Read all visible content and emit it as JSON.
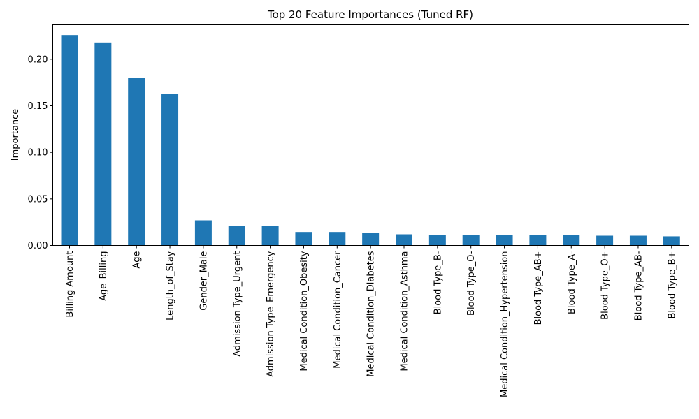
{
  "chart_data": {
    "type": "bar",
    "title": "Top 20 Feature Importances (Tuned RF)",
    "xlabel": "",
    "ylabel": "Importance",
    "ylim": [
      0,
      0.237
    ],
    "yticks": [
      "0.00",
      "0.05",
      "0.10",
      "0.15",
      "0.20"
    ],
    "ytick_values": [
      0,
      0.05,
      0.1,
      0.15,
      0.2
    ],
    "grid": false,
    "bar_color": "#1f77b4",
    "categories": [
      "Billing Amount",
      "Age_Billing",
      "Age",
      "Length_of_Stay",
      "Gender_Male",
      "Admission Type_Urgent",
      "Admission Type_Emergency",
      "Medical Condition_Obesity",
      "Medical Condition_Cancer",
      "Medical Condition_Diabetes",
      "Medical Condition_Asthma",
      "Blood Type_B-",
      "Blood Type_O-",
      "Medical Condition_Hypertension",
      "Blood Type_AB+",
      "Blood Type_A-",
      "Blood Type_O+",
      "Blood Type_AB-",
      "Blood Type_B+"
    ],
    "values": [
      0.226,
      0.218,
      0.18,
      0.163,
      0.027,
      0.021,
      0.021,
      0.0145,
      0.0145,
      0.0135,
      0.012,
      0.011,
      0.011,
      0.011,
      0.011,
      0.011,
      0.0105,
      0.0105,
      0.0098
    ]
  }
}
